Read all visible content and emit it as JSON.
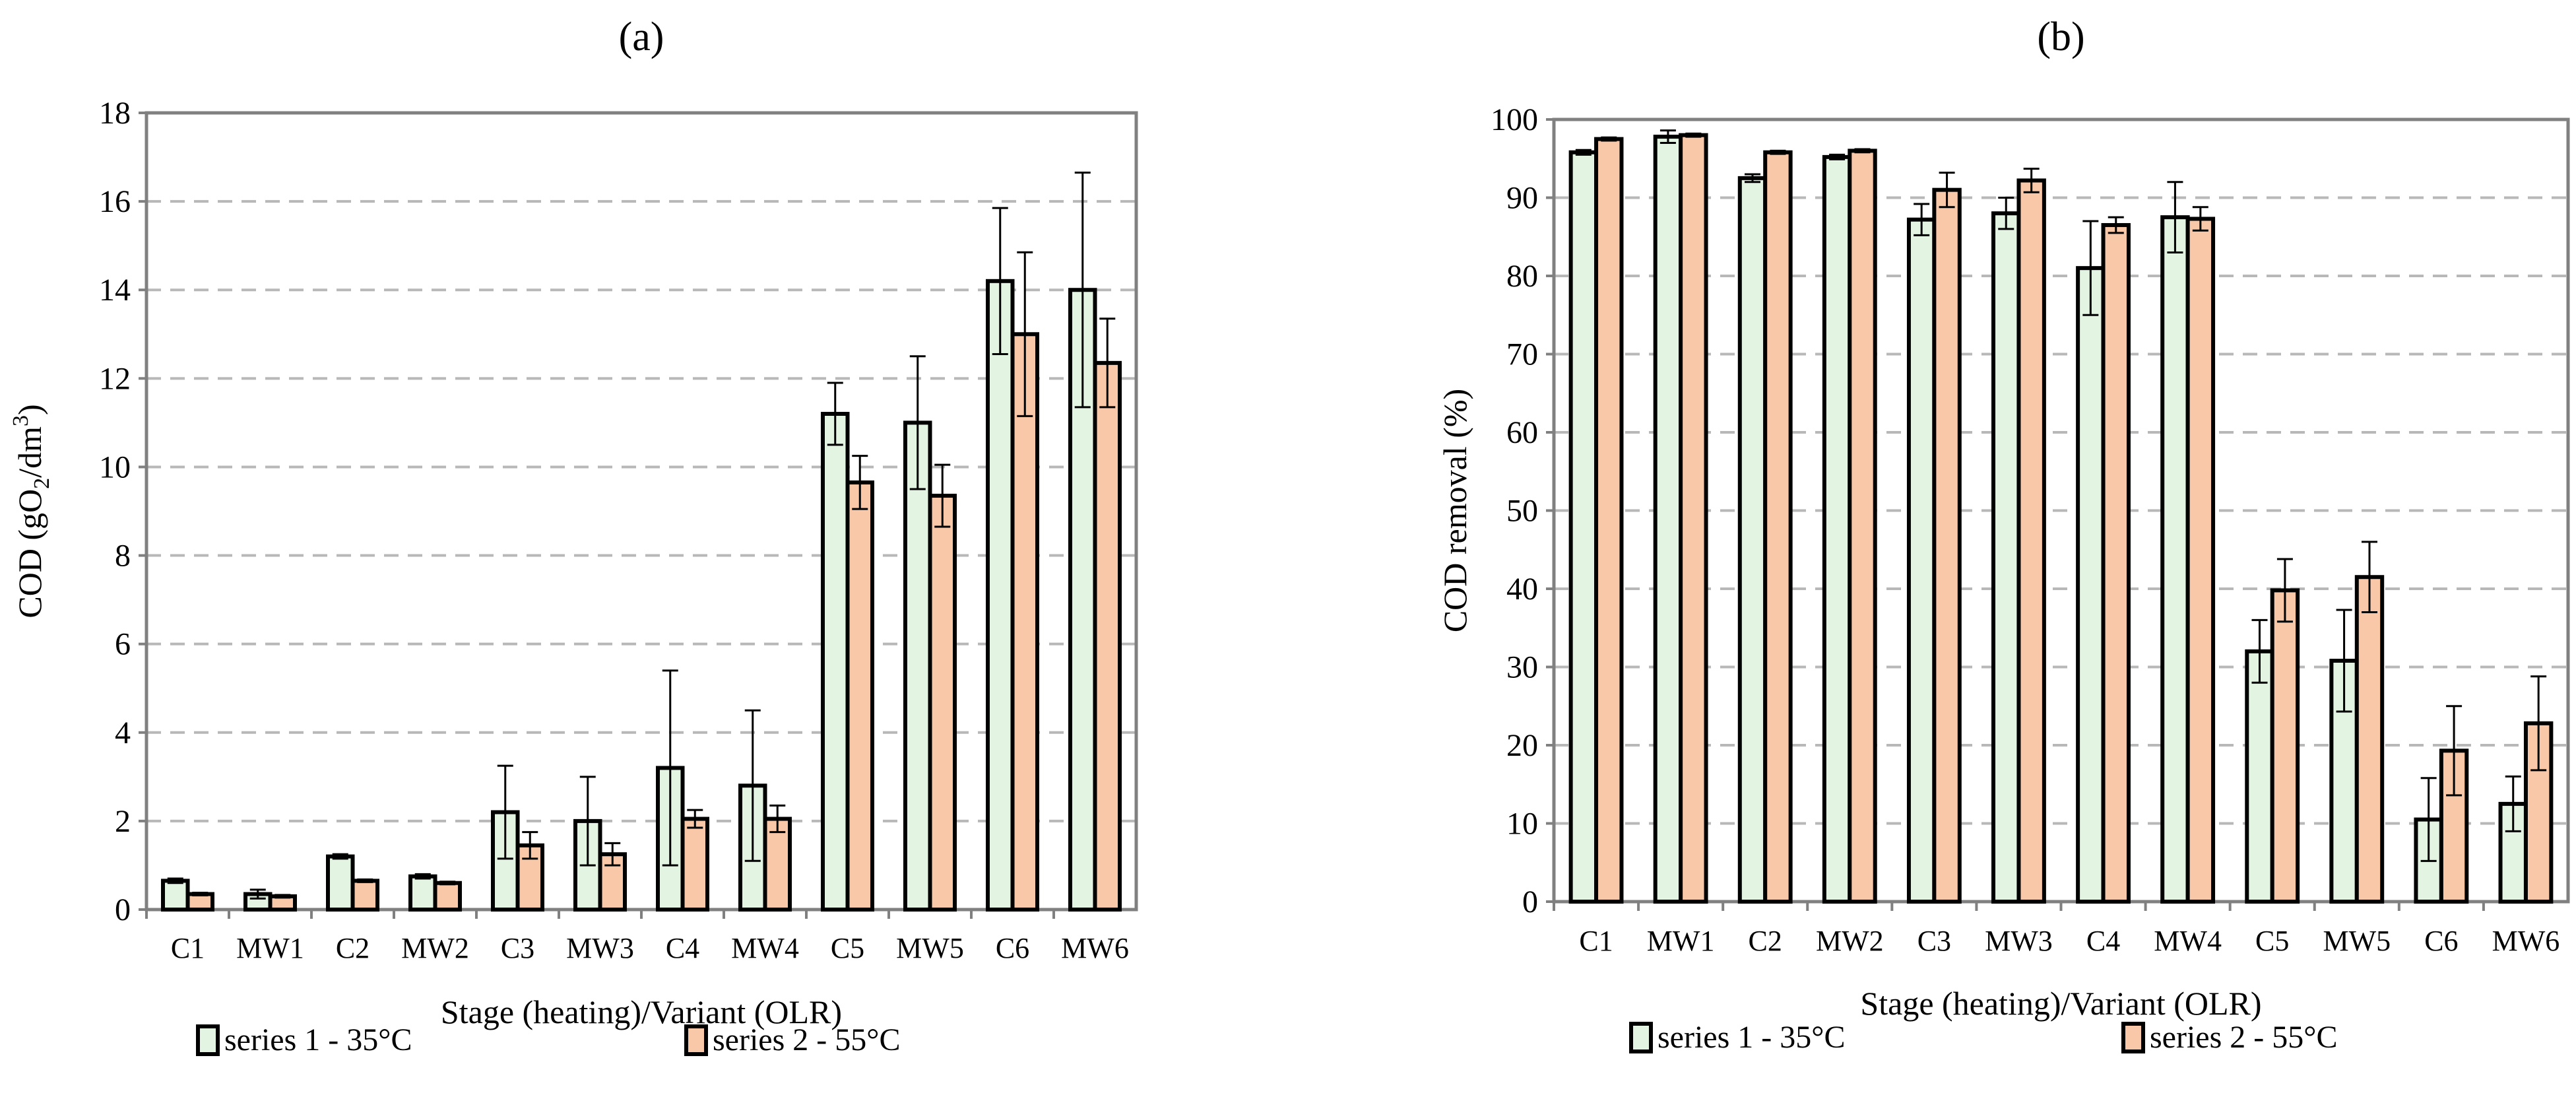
{
  "colors": {
    "series1_fill": "#e3f4e3",
    "series2_fill": "#f9c8a8",
    "bar_stroke": "#000000",
    "frame": "#808080",
    "grid": "#b8b8b8"
  },
  "chart_data": [
    {
      "type": "bar",
      "panel": "(a)",
      "title": "(a)",
      "xlabel": "Stage (heating)/Variant (OLR)",
      "ylabel": "COD (gO2/dm3)",
      "ylabel_parts": {
        "pre": "COD (gO",
        "sub": "2",
        "mid": "/dm",
        "sup": "3",
        "post": ")"
      },
      "categories": [
        "C1",
        "MW1",
        "C2",
        "MW2",
        "C3",
        "MW3",
        "C4",
        "MW4",
        "C5",
        "MW5",
        "C6",
        "MW6"
      ],
      "ylim": [
        0,
        18
      ],
      "yticks": [
        "0",
        "2",
        "4",
        "6",
        "8",
        "10",
        "12",
        "14",
        "16",
        "18"
      ],
      "grid": true,
      "legend_position": "bottom",
      "series": [
        {
          "name": "series 1 - 35°C",
          "values": [
            0.65,
            0.35,
            1.2,
            0.75,
            2.2,
            2.0,
            3.2,
            2.8,
            11.2,
            11.0,
            14.2,
            14.0
          ],
          "errors": [
            0.05,
            0.1,
            0.05,
            0.05,
            1.05,
            1.0,
            2.2,
            1.7,
            0.7,
            1.5,
            1.65,
            2.65
          ]
        },
        {
          "name": "series 2 - 55°C",
          "values": [
            0.35,
            0.3,
            0.65,
            0.6,
            1.45,
            1.25,
            2.05,
            2.05,
            9.65,
            9.35,
            13.0,
            12.35
          ],
          "errors": [
            0.03,
            0.03,
            0.03,
            0.03,
            0.3,
            0.25,
            0.2,
            0.3,
            0.6,
            0.7,
            1.85,
            1.0
          ]
        }
      ]
    },
    {
      "type": "bar",
      "panel": "(b)",
      "title": "(b)",
      "xlabel": "Stage (heating)/Variant (OLR)",
      "ylabel": "COD removal (%)",
      "categories": [
        "C1",
        "MW1",
        "C2",
        "MW2",
        "C3",
        "MW3",
        "C4",
        "MW4",
        "C5",
        "MW5",
        "C6",
        "MW6"
      ],
      "ylim": [
        0,
        100
      ],
      "yticks": [
        "0",
        "10",
        "20",
        "30",
        "40",
        "50",
        "60",
        "70",
        "80",
        "90",
        "100"
      ],
      "grid": true,
      "legend_position": "bottom",
      "series": [
        {
          "name": "series 1 - 35°C",
          "values": [
            95.8,
            97.8,
            92.5,
            95.2,
            87.2,
            88.0,
            81.0,
            87.5,
            32.0,
            30.8,
            10.5,
            12.5
          ],
          "errors": [
            0.3,
            0.8,
            0.5,
            0.3,
            2.0,
            2.0,
            6.0,
            4.5,
            4.0,
            6.5,
            5.3,
            3.5
          ]
        },
        {
          "name": "series 2 - 55°C",
          "values": [
            97.5,
            98.0,
            95.8,
            96.0,
            91.0,
            92.2,
            86.5,
            87.3,
            39.8,
            41.5,
            19.3,
            22.8
          ],
          "errors": [
            0.2,
            0.2,
            0.2,
            0.2,
            2.2,
            1.5,
            1.0,
            1.5,
            4.0,
            4.5,
            5.7,
            6.0
          ]
        }
      ]
    }
  ]
}
